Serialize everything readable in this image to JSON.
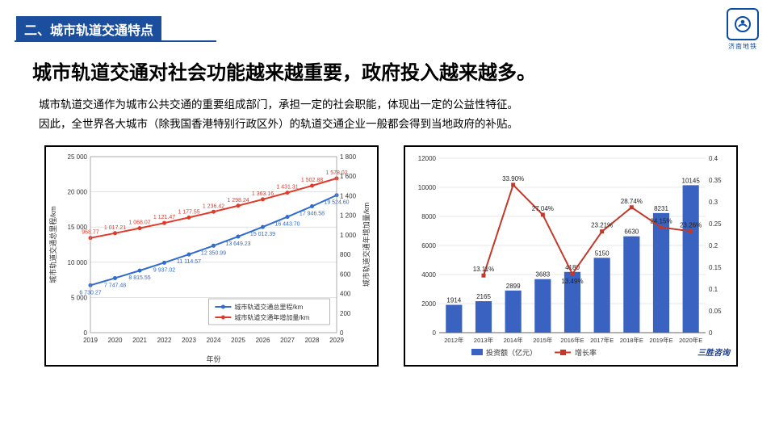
{
  "section_label": "二、城市轨道交通特点",
  "logo_text": "济南地铁",
  "headline": "城市轨道交通对社会功能越来越重要，政府投入越来越多。",
  "body1": "城市轨道交通作为城市公共交通的重要组成部门，承担一定的社会职能，体现出一定的公益性特征。",
  "body2": "因此，全世界各大城市（除我国香港特别行政区外）的轨道交通企业一般都会得到当地政府的补贴。",
  "chart1": {
    "type": "dual-axis-line",
    "x_label": "年份",
    "left_y_label": "城市轨道交通总里程/km",
    "right_y_label": "城市轨道交通年增加量/km",
    "legend": [
      "城市轨道交通总里程/km",
      "城市轨道交通年增加量/km"
    ],
    "years": [
      "2019",
      "2020",
      "2021",
      "2022",
      "2023",
      "2024",
      "2025",
      "2026",
      "2027",
      "2028",
      "2029"
    ],
    "series_blue": [
      6730.27,
      7747.48,
      8815.55,
      9937.02,
      11114.57,
      12350.99,
      13649.23,
      15012.39,
      16443.7,
      17946.58,
      19524.6
    ],
    "series_red": [
      968.77,
      1017.21,
      1068.07,
      1121.47,
      1177.55,
      1236.42,
      1298.24,
      1363.16,
      1431.31,
      1502.88,
      1578.02
    ],
    "left_ylim": [
      0,
      25000
    ],
    "left_ytick_step": 5000,
    "right_ylim": [
      0,
      1800
    ],
    "right_ytick_step": 200,
    "color_blue": "#2f6bd0",
    "color_red": "#e03a2a",
    "grid_color": "#d0d0d0",
    "background": "#ffffff",
    "marker": "circle",
    "line_width": 2,
    "label_fontsize": 8,
    "axis_fontsize": 8
  },
  "chart2": {
    "type": "bar+line",
    "years": [
      "2012年",
      "2013年",
      "2014年",
      "2015年",
      "2016年E",
      "2017年E",
      "2018年E",
      "2019年E",
      "2020年E"
    ],
    "bars": [
      1914,
      2165,
      2899,
      3683,
      4180,
      5150,
      6630,
      8231,
      10145
    ],
    "growth": [
      null,
      13.11,
      33.9,
      27.04,
      13.49,
      23.21,
      28.74,
      24.15,
      23.26
    ],
    "left_ylim": [
      0,
      12000
    ],
    "left_ytick_step": 2000,
    "right_ylim": [
      0,
      0.4
    ],
    "right_ytick_step": 0.05,
    "bar_color": "#3a63c1",
    "line_color": "#c0392b",
    "marker": "square",
    "legend": [
      "投资额（亿元）",
      "增长率"
    ],
    "brand": "三胜咨询",
    "grid_color": "#cfcfcf",
    "background": "#ffffff",
    "label_fontsize": 8,
    "axis_fontsize": 8,
    "bar_width": 0.55,
    "line_width": 2
  }
}
